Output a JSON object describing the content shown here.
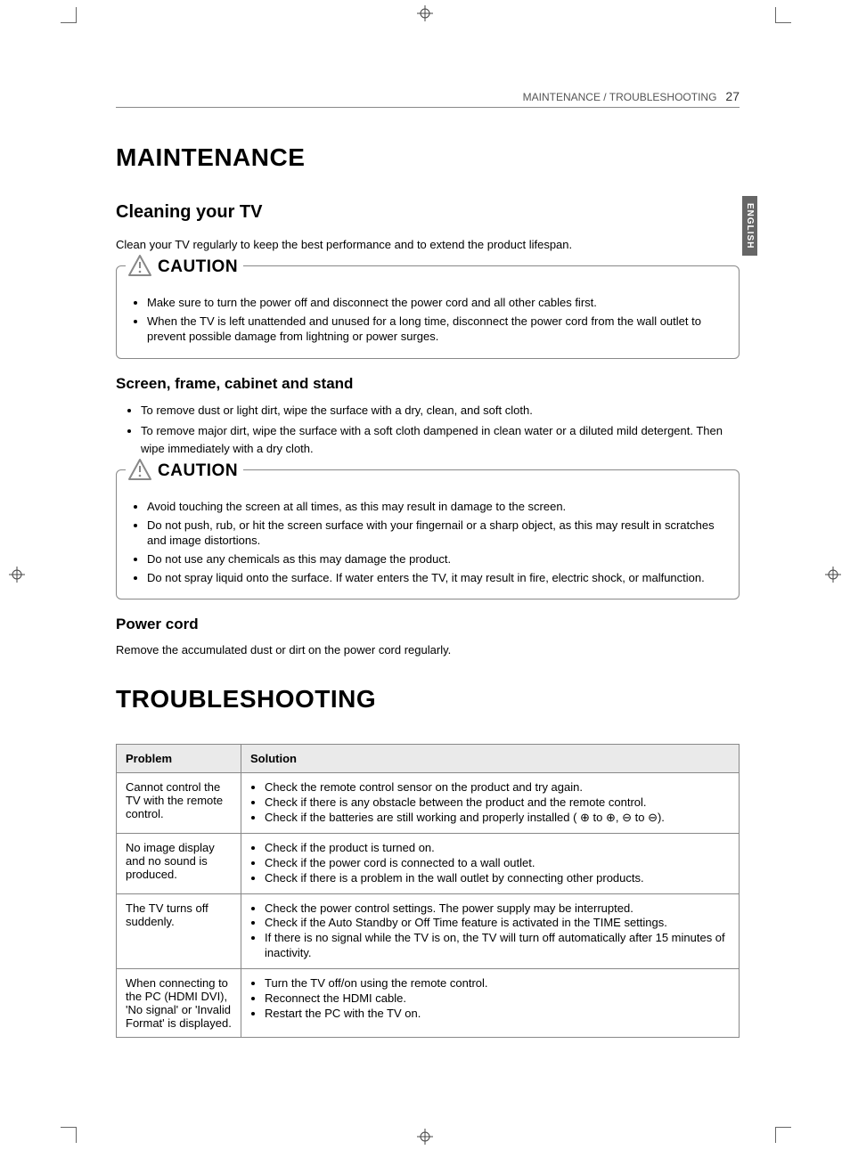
{
  "header": {
    "section": "MAINTENANCE / TROUBLESHOOTING",
    "page_number": "27"
  },
  "side_tab": "ENGLISH",
  "maintenance": {
    "title": "MAINTENANCE",
    "cleaning": {
      "heading": "Cleaning your TV",
      "intro": "Clean your TV regularly to keep the best performance and to extend the product lifespan.",
      "caution1_label": "CAUTION",
      "caution1_items": [
        "Make sure to turn the power off and disconnect the power cord and all other cables first.",
        "When the TV is left unattended and unused for a long time, disconnect the power cord from the wall outlet to prevent possible damage from lightning or power surges."
      ],
      "screen_heading": "Screen, frame, cabinet and stand",
      "screen_items": [
        "To remove dust or light dirt, wipe the surface with a dry, clean, and soft cloth.",
        "To remove major dirt, wipe the surface with a soft cloth dampened in clean water or a diluted mild detergent. Then wipe immediately with a dry cloth."
      ],
      "caution2_label": "CAUTION",
      "caution2_items": [
        "Avoid touching the screen at all times, as this may result in damage to the screen.",
        "Do not push, rub, or hit the screen surface with your fingernail or a sharp object, as this may result in scratches and image distortions.",
        "Do not use any chemicals as this may damage the product.",
        "Do not spray liquid onto the surface. If water enters the TV, it may result in fire, electric shock, or malfunction."
      ],
      "power_heading": "Power cord",
      "power_text": "Remove the accumulated dust or dirt on the power cord regularly."
    }
  },
  "troubleshooting": {
    "title": "TROUBLESHOOTING",
    "table": {
      "col_problem": "Problem",
      "col_solution": "Solution",
      "rows": [
        {
          "problem": "Cannot control the TV with the remote control.",
          "solutions": [
            "Check the remote control sensor on the product and try again.",
            "Check if there is any obstacle between the product and the remote control.",
            "Check if the batteries are still working and properly installed ( ⊕ to ⊕, ⊖ to ⊖)."
          ]
        },
        {
          "problem": "No image display and no sound is produced.",
          "solutions": [
            "Check if the product is turned on.",
            "Check if the power cord is connected to a wall outlet.",
            "Check if there is a problem in the wall outlet by connecting other products."
          ]
        },
        {
          "problem": "The TV turns off suddenly.",
          "solutions": [
            "Check the power control settings. The power supply may be interrupted.",
            "Check if the Auto Standby or Off Time feature is activated in the TIME settings.",
            "If there is no signal while the TV is on, the TV will turn off automatically after 15 minutes of inactivity."
          ]
        },
        {
          "problem": "When connecting to the PC (HDMI DVI), 'No signal' or 'Invalid Format' is displayed.",
          "solutions": [
            "Turn the TV off/on using the remote control.",
            "Reconnect the HDMI cable.",
            "Restart the PC with the TV on."
          ]
        }
      ]
    }
  },
  "colors": {
    "text": "#000000",
    "muted": "#555555",
    "rule": "#888888",
    "th_bg": "#eaeaea",
    "tab_bg": "#666666",
    "tab_text": "#ffffff",
    "background": "#ffffff"
  }
}
